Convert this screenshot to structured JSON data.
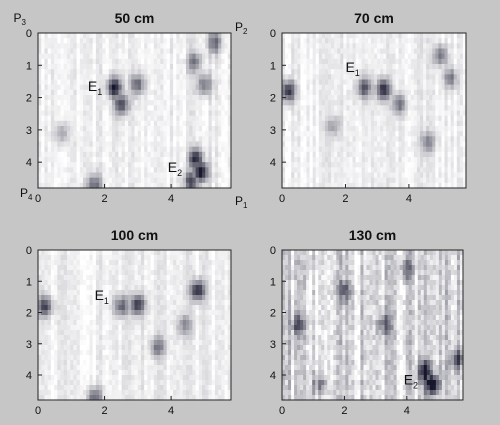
{
  "chart_data": [
    {
      "type": "heatmap",
      "title": "50 cm",
      "xlim": [
        0,
        5.8
      ],
      "ylim": [
        0,
        4.8
      ],
      "xticks": [
        "0",
        "2",
        "4"
      ],
      "yticks": [
        "0",
        "1",
        "2",
        "3",
        "4"
      ],
      "colormap": [
        "#ffffff",
        "#16162c"
      ],
      "corner_labels": [
        {
          "text": "P",
          "sub": "3",
          "pos": "top-left"
        },
        {
          "text": "P",
          "sub": "2",
          "pos": "top-right"
        },
        {
          "text": "P",
          "sub": "4",
          "pos": "bottom-left"
        },
        {
          "text": "P",
          "sub": "1",
          "pos": "bottom-right"
        }
      ],
      "annotations": [
        {
          "text": "E",
          "sub": "1",
          "x": 1.5,
          "y": 1.8
        },
        {
          "text": "E",
          "sub": "2",
          "x": 3.9,
          "y": 4.3
        }
      ],
      "hotspots": [
        {
          "x": 2.3,
          "y": 1.7,
          "v": 0.9
        },
        {
          "x": 2.5,
          "y": 2.2,
          "v": 0.75
        },
        {
          "x": 3.0,
          "y": 1.6,
          "v": 0.6
        },
        {
          "x": 4.9,
          "y": 4.3,
          "v": 1.0
        },
        {
          "x": 4.75,
          "y": 3.9,
          "v": 0.85
        },
        {
          "x": 4.6,
          "y": 4.6,
          "v": 0.7
        },
        {
          "x": 5.3,
          "y": 0.3,
          "v": 0.6
        },
        {
          "x": 4.7,
          "y": 0.9,
          "v": 0.5
        },
        {
          "x": 5.0,
          "y": 1.6,
          "v": 0.55
        },
        {
          "x": 1.7,
          "y": 4.7,
          "v": 0.6
        },
        {
          "x": 0.7,
          "y": 3.1,
          "v": 0.35
        }
      ]
    },
    {
      "type": "heatmap",
      "title": "70 cm",
      "xlim": [
        0,
        5.8
      ],
      "ylim": [
        0,
        4.8
      ],
      "xticks": [
        "0",
        "2",
        "4"
      ],
      "yticks": [
        "0",
        "1",
        "2",
        "3",
        "4"
      ],
      "colormap": [
        "#ffffff",
        "#16162c"
      ],
      "corner_labels": [],
      "annotations": [
        {
          "text": "E",
          "sub": "1",
          "x": 2.0,
          "y": 1.2
        }
      ],
      "hotspots": [
        {
          "x": 0.2,
          "y": 1.8,
          "v": 0.85
        },
        {
          "x": 2.6,
          "y": 1.7,
          "v": 0.7
        },
        {
          "x": 3.2,
          "y": 1.75,
          "v": 0.85
        },
        {
          "x": 3.7,
          "y": 2.2,
          "v": 0.55
        },
        {
          "x": 5.0,
          "y": 0.7,
          "v": 0.55
        },
        {
          "x": 5.3,
          "y": 1.4,
          "v": 0.5
        },
        {
          "x": 4.6,
          "y": 3.4,
          "v": 0.45
        },
        {
          "x": 1.6,
          "y": 2.9,
          "v": 0.3
        }
      ]
    },
    {
      "type": "heatmap",
      "title": "100 cm",
      "xlim": [
        0,
        5.8
      ],
      "ylim": [
        0,
        4.8
      ],
      "xticks": [
        "0",
        "2",
        "4"
      ],
      "yticks": [
        "0",
        "1",
        "2",
        "3",
        "4"
      ],
      "colormap": [
        "#ffffff",
        "#16162c"
      ],
      "corner_labels": [],
      "annotations": [
        {
          "text": "E",
          "sub": "1",
          "x": 1.7,
          "y": 1.6
        }
      ],
      "hotspots": [
        {
          "x": 0.2,
          "y": 1.8,
          "v": 0.75
        },
        {
          "x": 2.5,
          "y": 1.8,
          "v": 0.6
        },
        {
          "x": 3.0,
          "y": 1.75,
          "v": 0.8
        },
        {
          "x": 4.8,
          "y": 1.3,
          "v": 0.85
        },
        {
          "x": 3.6,
          "y": 3.1,
          "v": 0.5
        },
        {
          "x": 1.7,
          "y": 4.7,
          "v": 0.6
        },
        {
          "x": 4.4,
          "y": 2.4,
          "v": 0.4
        }
      ]
    },
    {
      "type": "heatmap",
      "title": "130 cm",
      "xlim": [
        0,
        5.8
      ],
      "ylim": [
        0,
        4.8
      ],
      "xticks": [
        "0",
        "2",
        "4"
      ],
      "yticks": [
        "0",
        "1",
        "2",
        "3",
        "4"
      ],
      "colormap": [
        "#ffffff",
        "#16162c"
      ],
      "corner_labels": [],
      "annotations": [
        {
          "text": "E",
          "sub": "2",
          "x": 3.9,
          "y": 4.3
        }
      ],
      "hotspots": [
        {
          "x": 4.8,
          "y": 4.3,
          "v": 1.0
        },
        {
          "x": 4.6,
          "y": 3.9,
          "v": 0.9
        },
        {
          "x": 5.6,
          "y": 3.5,
          "v": 0.6
        },
        {
          "x": 0.5,
          "y": 2.4,
          "v": 0.55
        },
        {
          "x": 2.0,
          "y": 1.3,
          "v": 0.5
        },
        {
          "x": 3.3,
          "y": 2.4,
          "v": 0.5
        },
        {
          "x": 1.2,
          "y": 4.3,
          "v": 0.45
        },
        {
          "x": 4.0,
          "y": 0.6,
          "v": 0.5
        }
      ],
      "noise_level": 0.45
    }
  ]
}
